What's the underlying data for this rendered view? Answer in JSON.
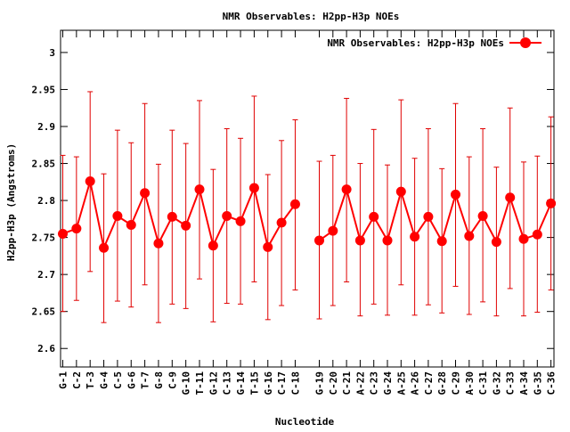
{
  "colors": {
    "series": "#ff0000",
    "errorbar": "#e00000",
    "axis": "#000000"
  },
  "chart_data": {
    "type": "line",
    "title": "NMR Observables: H2pp-H3p NOEs",
    "xlabel": "Nucleotide",
    "ylabel": "H2pp-H3p (Angstroms)",
    "ylim": [
      2.575,
      3.03
    ],
    "yticks": [
      "2.6",
      "2.65",
      "2.7",
      "2.75",
      "2.8",
      "2.85",
      "2.9",
      "2.95",
      "3"
    ],
    "ytick_values": [
      2.6,
      2.65,
      2.7,
      2.75,
      2.8,
      2.85,
      2.9,
      2.95,
      3.0
    ],
    "grid": false,
    "legend_position": "top-right",
    "categories": [
      "G-1",
      "C-2",
      "T-3",
      "G-4",
      "C-5",
      "G-6",
      "T-7",
      "G-8",
      "C-9",
      "G-10",
      "T-11",
      "G-12",
      "C-13",
      "G-14",
      "T-15",
      "G-16",
      "C-17",
      "C-18",
      "G-19",
      "C-20",
      "C-21",
      "A-22",
      "C-23",
      "G-24",
      "A-25",
      "A-26",
      "C-27",
      "G-28",
      "C-29",
      "A-30",
      "C-31",
      "G-32",
      "C-33",
      "A-34",
      "G-35",
      "C-36"
    ],
    "series": [
      {
        "name": "NMR Observables: H2pp-H3p NOEs",
        "values": [
          2.755,
          2.762,
          2.826,
          2.736,
          2.779,
          2.767,
          2.81,
          2.742,
          2.778,
          2.766,
          2.815,
          2.739,
          2.779,
          2.772,
          2.817,
          2.737,
          2.77,
          2.795,
          2.746,
          2.759,
          2.815,
          2.746,
          2.778,
          2.746,
          2.812,
          2.751,
          2.778,
          2.745,
          2.808,
          2.752,
          2.779,
          2.744,
          2.804,
          2.748,
          2.754,
          2.796
        ],
        "err_low": [
          2.65,
          2.665,
          2.704,
          2.635,
          2.664,
          2.656,
          2.686,
          2.635,
          2.66,
          2.654,
          2.694,
          2.636,
          2.661,
          2.66,
          2.69,
          2.639,
          2.658,
          2.679,
          2.64,
          2.658,
          2.69,
          2.644,
          2.66,
          2.645,
          2.686,
          2.645,
          2.659,
          2.648,
          2.684,
          2.646,
          2.663,
          2.644,
          2.681,
          2.644,
          2.649,
          2.679
        ],
        "err_high": [
          2.861,
          2.859,
          2.947,
          2.836,
          2.895,
          2.878,
          2.931,
          2.849,
          2.895,
          2.877,
          2.935,
          2.842,
          2.897,
          2.884,
          2.941,
          2.835,
          2.881,
          2.909,
          2.853,
          2.861,
          2.938,
          2.85,
          2.896,
          2.848,
          2.936,
          2.857,
          2.897,
          2.843,
          2.931,
          2.859,
          2.897,
          2.845,
          2.925,
          2.852,
          2.86,
          2.913
        ]
      }
    ]
  }
}
